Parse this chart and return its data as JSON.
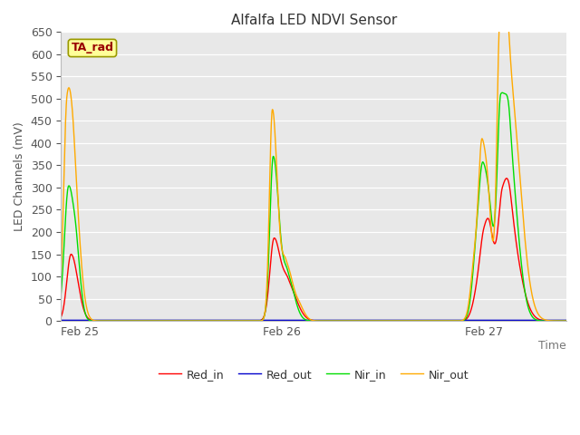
{
  "title": "Alfalfa LED NDVI Sensor",
  "xlabel": "Time",
  "ylabel": "LED Channels (mV)",
  "ylim": [
    0,
    650
  ],
  "yticks": [
    0,
    50,
    100,
    150,
    200,
    250,
    300,
    350,
    400,
    450,
    500,
    550,
    600,
    650
  ],
  "plot_bg_color": "#e8e8e8",
  "line_colors": {
    "Red_in": "#ff0000",
    "Red_out": "#0000cc",
    "Nir_in": "#00dd00",
    "Nir_out": "#ffaa00"
  },
  "ta_rad_label": "TA_rad",
  "ta_rad_color": "#990000",
  "ta_rad_bg": "#ffff99",
  "ta_rad_border": "#999900",
  "xtick_labels": [
    "Feb 25",
    "Feb 26",
    "Feb 27"
  ],
  "xtick_positions": [
    0,
    24,
    48
  ],
  "xlim": [
    0,
    60
  ]
}
